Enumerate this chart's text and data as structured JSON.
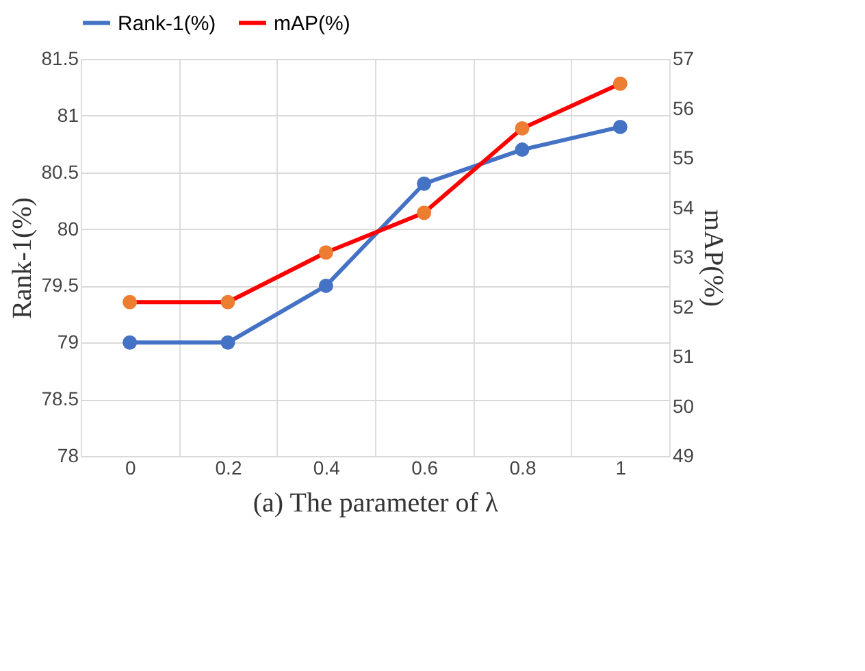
{
  "chart_data": {
    "type": "line",
    "xlabel": "(a) The parameter of λ",
    "ylabel": "Rank-1(%)",
    "y2label": "mAP(%)",
    "categories": [
      "0",
      "0.2",
      "0.4",
      "0.6",
      "0.8",
      "1"
    ],
    "series": [
      {
        "name": "Rank-1(%)",
        "color": "#4472c4",
        "values": [
          79,
          79,
          79.5,
          80.4,
          80.7,
          80.9
        ]
      },
      {
        "name": "mAP(%)",
        "color": "#ff0000",
        "colors": [
          "#ed7d31",
          "#ed7d31",
          "#ed7d31",
          "#ed7d31",
          "#ed7d31",
          "#ed7d31"
        ],
        "axis": "y2",
        "values": [
          52.1,
          52.1,
          53.1,
          53.9,
          55.6,
          56.5
        ]
      }
    ],
    "ylim": [
      78,
      81.5
    ],
    "yticks": [
      78,
      78.5,
      79,
      79.5,
      80,
      80.5,
      81,
      81.5
    ],
    "y2lim": [
      49,
      57
    ],
    "y2ticks": [
      49,
      50,
      51,
      52,
      53,
      54,
      55,
      56,
      57
    ],
    "grid": true,
    "legend": "top",
    "marker": "circle",
    "line_style": "solid"
  }
}
